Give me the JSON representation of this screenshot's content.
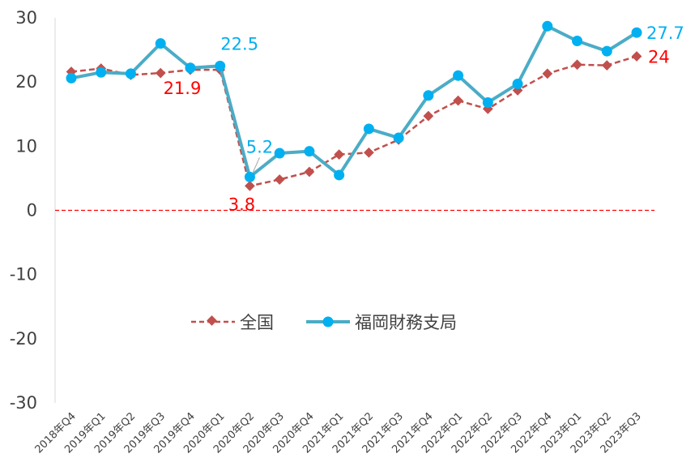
{
  "chart_data": {
    "type": "line",
    "title": "",
    "xlabel": "",
    "ylabel": "",
    "ylim": [
      -30,
      30
    ],
    "yticks": [
      30,
      20,
      10,
      0,
      -10,
      -20,
      -30
    ],
    "grid": false,
    "legend_position": "center",
    "categories": [
      "2018年Q4",
      "2019年Q1",
      "2019年Q2",
      "2019年Q3",
      "2019年Q4",
      "2020年Q1",
      "2020年Q2",
      "2020年Q3",
      "2020年Q4",
      "2021年Q1",
      "2021年Q2",
      "2021年Q3",
      "2021年Q4",
      "2022年Q1",
      "2022年Q2",
      "2022年Q3",
      "2022年Q4",
      "2023年Q1",
      "2023年Q2",
      "2023年Q3"
    ],
    "series": [
      {
        "name": "全国",
        "color": "#C0504D",
        "style": "dashed",
        "marker": "diamond",
        "values": [
          21.6,
          22.1,
          21.1,
          21.4,
          21.9,
          21.9,
          3.8,
          4.8,
          6.0,
          8.7,
          9.0,
          11.0,
          14.7,
          17.1,
          15.8,
          18.7,
          21.3,
          22.7,
          22.6,
          24.0
        ]
      },
      {
        "name": "福岡財務支局",
        "color": "#00B0F0",
        "line_color": "#4BACC6",
        "style": "solid",
        "marker": "circle",
        "values": [
          20.6,
          21.5,
          21.3,
          26.0,
          22.2,
          22.5,
          5.2,
          8.9,
          9.2,
          5.5,
          12.7,
          11.3,
          17.9,
          21.0,
          16.8,
          19.7,
          28.7,
          26.4,
          24.8,
          27.7
        ]
      }
    ],
    "annotations": [
      {
        "text": "22.5",
        "series": 1,
        "index": 5,
        "color": "#00B0F0"
      },
      {
        "text": "21.9",
        "series": 0,
        "index": 4,
        "color": "#FF0000"
      },
      {
        "text": "5.2",
        "series": 1,
        "index": 6,
        "color": "#00B0F0"
      },
      {
        "text": "3.8",
        "series": 0,
        "index": 6,
        "color": "#FF0000"
      },
      {
        "text": "27.7",
        "series": 1,
        "index": 19,
        "color": "#00B0F0"
      },
      {
        "text": "24",
        "series": 0,
        "index": 19,
        "color": "#FF0000"
      }
    ],
    "reference_line": {
      "value": 0,
      "color": "#FF0000"
    }
  }
}
